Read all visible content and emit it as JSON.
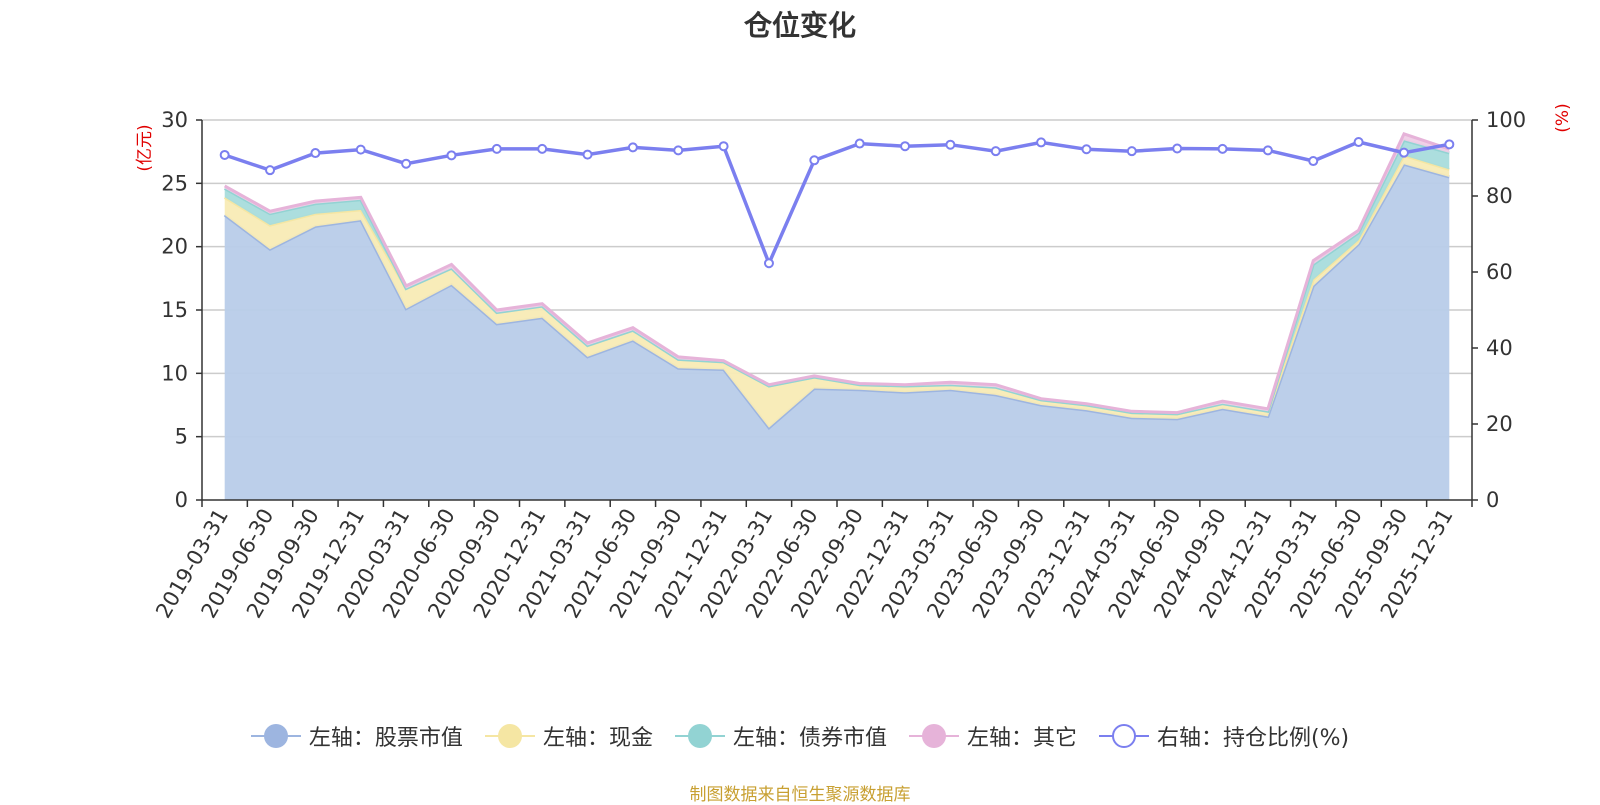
{
  "title": "仓位变化",
  "source_note": "制图数据来自恒生聚源数据库",
  "colors": {
    "stock": "#9db5e0",
    "stock_fill": "#b8cce9",
    "cash": "#f5e6a3",
    "cash_fill": "#f8ebb5",
    "bond": "#92d3d3",
    "bond_fill": "#a8dcdc",
    "other": "#e6b3d9",
    "other_fill": "#efcde6",
    "ratio": "#7b7fef",
    "axis_name": "#e00000",
    "grid": "#cccccc",
    "axis": "#333333"
  },
  "legend": [
    {
      "label": "左轴：股票市值",
      "key": "stock",
      "marker": "filled"
    },
    {
      "label": "左轴：现金",
      "key": "cash",
      "marker": "filled"
    },
    {
      "label": "左轴：债券市值",
      "key": "bond",
      "marker": "filled"
    },
    {
      "label": "左轴：其它",
      "key": "other",
      "marker": "filled"
    },
    {
      "label": "右轴：持仓比例(%)",
      "key": "ratio",
      "marker": "hollow"
    }
  ],
  "chart_data": {
    "type": "area",
    "title": "仓位变化",
    "x": [
      "2019-03-31",
      "2019-06-30",
      "2019-09-30",
      "2019-12-31",
      "2020-03-31",
      "2020-06-30",
      "2020-09-30",
      "2020-12-31",
      "2021-03-31",
      "2021-06-30",
      "2021-09-30",
      "2021-12-31",
      "2022-03-31",
      "2022-06-30",
      "2022-09-30",
      "2022-12-31",
      "2023-03-31",
      "2023-06-30",
      "2023-09-30",
      "2023-12-31",
      "2024-03-31",
      "2024-06-30",
      "2024-09-30",
      "2024-12-31",
      "2025-03-31",
      "2025-06-30",
      "2025-09-30",
      "2025-12-31"
    ],
    "stacked": true,
    "left_axis": {
      "label": "(亿元)",
      "range": [
        0,
        30
      ],
      "ticks": [
        0,
        5,
        10,
        15,
        20,
        25,
        30
      ]
    },
    "right_axis": {
      "label": "(%)",
      "range": [
        0,
        100
      ],
      "ticks": [
        0,
        20,
        40,
        60,
        80,
        100
      ]
    },
    "series": [
      {
        "name": "左轴：股票市值",
        "key": "stock",
        "axis": "left",
        "kind": "area",
        "values": [
          22.5,
          19.8,
          21.6,
          22.1,
          15.1,
          17.0,
          13.9,
          14.4,
          11.3,
          12.6,
          10.4,
          10.3,
          5.7,
          8.8,
          8.7,
          8.5,
          8.7,
          8.3,
          7.5,
          7.1,
          6.5,
          6.4,
          7.2,
          6.6,
          16.9,
          20.2,
          26.5,
          25.5
        ]
      },
      {
        "name": "左轴：现金",
        "key": "cash",
        "axis": "left",
        "kind": "area",
        "values": [
          1.4,
          1.9,
          1.0,
          0.8,
          1.6,
          1.3,
          0.9,
          0.9,
          0.9,
          0.8,
          0.7,
          0.6,
          3.3,
          0.9,
          0.4,
          0.5,
          0.4,
          0.6,
          0.4,
          0.4,
          0.4,
          0.4,
          0.4,
          0.4,
          0.5,
          0.3,
          0.7,
          0.6
        ]
      },
      {
        "name": "左轴：债券市值",
        "key": "bond",
        "axis": "left",
        "kind": "area",
        "values": [
          0.7,
          0.9,
          0.8,
          0.8,
          0.0,
          0.0,
          0.0,
          0.0,
          0.0,
          0.0,
          0.0,
          0.0,
          0.0,
          0.0,
          0.0,
          0.0,
          0.0,
          0.0,
          0.0,
          0.0,
          0.0,
          0.0,
          0.0,
          0.0,
          1.2,
          0.6,
          1.2,
          1.3
        ]
      },
      {
        "name": "左轴：其它",
        "key": "other",
        "axis": "left",
        "kind": "area",
        "values": [
          0.2,
          0.2,
          0.2,
          0.2,
          0.2,
          0.3,
          0.2,
          0.2,
          0.2,
          0.2,
          0.2,
          0.1,
          0.1,
          0.1,
          0.1,
          0.1,
          0.2,
          0.2,
          0.1,
          0.1,
          0.1,
          0.1,
          0.2,
          0.2,
          0.3,
          0.2,
          0.5,
          0.3
        ]
      },
      {
        "name": "右轴：持仓比例(%)",
        "key": "ratio",
        "axis": "right",
        "kind": "line",
        "values": [
          90.8,
          86.8,
          91.3,
          92.2,
          88.5,
          90.7,
          92.4,
          92.4,
          90.9,
          92.8,
          92.0,
          93.1,
          62.3,
          89.4,
          93.8,
          93.1,
          93.5,
          91.8,
          94.1,
          92.3,
          91.8,
          92.5,
          92.4,
          92.0,
          89.2,
          94.2,
          91.4,
          93.6
        ]
      }
    ],
    "grid": true,
    "legend_position": "bottom"
  }
}
